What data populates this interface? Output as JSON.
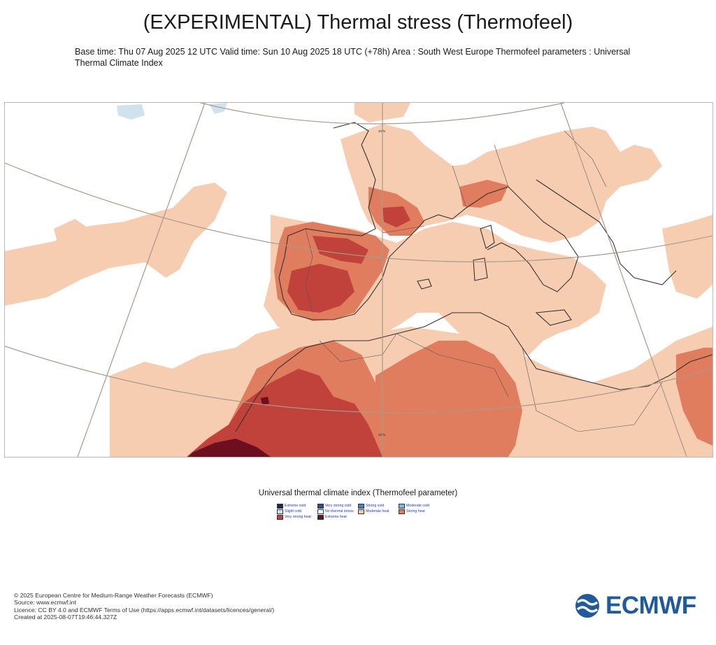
{
  "header": {
    "title": "(EXPERIMENTAL) Thermal stress (Thermofeel)",
    "subtitle": "Base time: Thu 07 Aug 2025 12 UTC Valid time: Sun 10 Aug 2025 18 UTC (+78h) Area : South West Europe Thermofeel parameters : Universal Thermal Climate Index"
  },
  "map": {
    "lat_labels": [
      "45°N",
      "30°N"
    ],
    "colors": {
      "moderate_heat": "#f6cdb1",
      "strong_heat": "#e07d5f",
      "very_strong_heat": "#c0423a",
      "extreme_heat": "#6e0f1f",
      "water_ice": "#cfe2ee",
      "coast": "#333333",
      "grid": "#a89a88"
    }
  },
  "legend": {
    "title": "Universal thermal climate index (Thermofeel parameter)",
    "items": [
      {
        "label": "Extreme cold",
        "color": "#1c2a4e"
      },
      {
        "label": "Very strong cold",
        "color": "#27518a"
      },
      {
        "label": "Strong cold",
        "color": "#3d87c2"
      },
      {
        "label": "Moderate cold",
        "color": "#7fb6dc"
      },
      {
        "label": "Slight cold",
        "color": "#cfe2ee"
      },
      {
        "label": "No thermal stress",
        "color": "#ffffff"
      },
      {
        "label": "Moderate heat",
        "color": "#f6cdb1"
      },
      {
        "label": "Strong heat",
        "color": "#e07d5f"
      },
      {
        "label": "Very strong heat",
        "color": "#c0423a"
      },
      {
        "label": "Extreme heat",
        "color": "#6e0f1f"
      }
    ]
  },
  "footer": {
    "lines": [
      "© 2025 European Centre for Medium-Range Weather Forecasts (ECMWF)",
      "Source: www.ecmwf.int",
      "Licence: CC BY 4.0 and ECMWF Terms of Use (https://apps.ecmwf.int/datasets/licences/general/)",
      "Created at 2025-08-07T19:46:44.327Z"
    ],
    "logo_text": "ECMWF"
  }
}
